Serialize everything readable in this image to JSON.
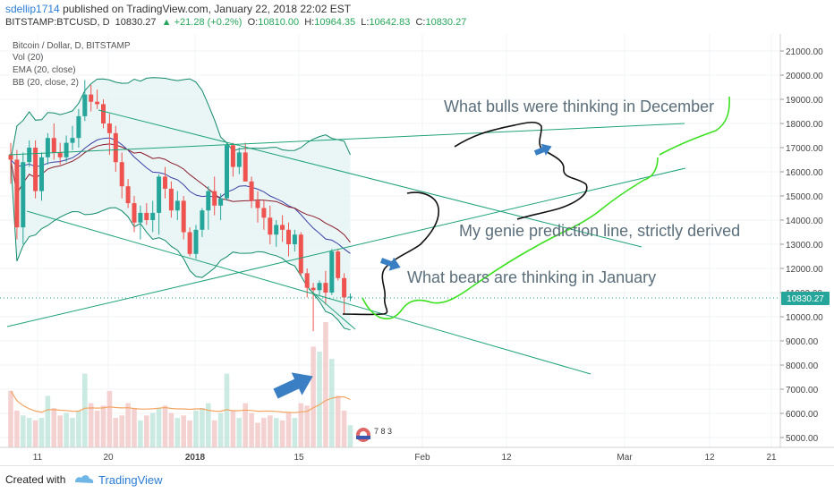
{
  "header": {
    "author": "sdellip1714",
    "published_text": "published on TradingView.com, January 22, 2018 22:02 EST",
    "symbol": "BITSTAMP:BTCUSD, D",
    "last": "10830.27",
    "change": "+21.28 (+0.2%)",
    "o_label": "O:",
    "o_value": "10810.00",
    "h_label": "H:",
    "h_value": "10964.35",
    "l_label": "L:",
    "l_value": "10642.83",
    "c_label": "C:",
    "c_value": "10830.27"
  },
  "legend": {
    "title": "Bitcoin / Dollar, D, BITSTAMP",
    "vol": "Vol (20)",
    "ema": "EMA (20, close)",
    "bb": "BB (20, close, 2)"
  },
  "annotations": {
    "bulls": "What bulls were thinking in December",
    "genie": "My genie prediction line, strictly derived",
    "bears": "What bears are thinking in January"
  },
  "footer": {
    "created_with": "Created with",
    "brand": "TradingView"
  },
  "colors": {
    "up": "#26a69a",
    "down": "#ef5350",
    "bb": "#0f8a6a",
    "ema": "#3b3fa8",
    "ema2": "#8b1a2b",
    "trend": "#1fa37a",
    "drawing_green": "#3be11f",
    "arrow_blue": "#3a7ec4",
    "price_label_bg": "#26a69a"
  },
  "chart_data": {
    "type": "candlestick",
    "title": "Bitcoin / Dollar, D, BITSTAMP",
    "ylim": [
      4500,
      22000
    ],
    "y_ticks": [
      "21000.00",
      "20000.00",
      "19000.00",
      "18000.00",
      "17000.00",
      "16000.00",
      "15000.00",
      "14000.00",
      "13000.00",
      "12000.00",
      "11000.00",
      "10000.00",
      "9000.00",
      "8000.00",
      "7000.00",
      "6000.00",
      "5000.00"
    ],
    "y_tick_values": [
      21000,
      20000,
      19000,
      18000,
      17000,
      16000,
      15000,
      14000,
      13000,
      12000,
      11000,
      10000,
      9000,
      8000,
      7000,
      6000,
      5000
    ],
    "x_ticks": [
      "11",
      "20",
      "2018",
      "15",
      "Feb",
      "12",
      "Mar",
      "12",
      "21"
    ],
    "last_price": 10830.27,
    "last_price_label": "10830.27",
    "watermark_digits": "7 8 3",
    "candles": [
      [
        16700,
        17200,
        15500,
        16500
      ],
      [
        16500,
        16900,
        13200,
        13700
      ],
      [
        13700,
        16800,
        13000,
        16400
      ],
      [
        16400,
        17300,
        16200,
        17000
      ],
      [
        17000,
        17300,
        14900,
        15200
      ],
      [
        15200,
        16800,
        14800,
        16600
      ],
      [
        16600,
        17600,
        16300,
        17400
      ],
      [
        17400,
        18000,
        16500,
        16800
      ],
      [
        16800,
        17200,
        16300,
        16600
      ],
      [
        16600,
        17500,
        16400,
        17200
      ],
      [
        17200,
        17900,
        16900,
        17400
      ],
      [
        17400,
        18600,
        17000,
        18300
      ],
      [
        18300,
        19800,
        18100,
        19200
      ],
      [
        19200,
        19600,
        18500,
        18900
      ],
      [
        18900,
        19400,
        18600,
        18800
      ],
      [
        18800,
        19000,
        17800,
        18000
      ],
      [
        18000,
        18400,
        16700,
        17600
      ],
      [
        17600,
        17900,
        16000,
        16400
      ],
      [
        16400,
        16800,
        14900,
        15400
      ],
      [
        15400,
        15700,
        14500,
        14700
      ],
      [
        14700,
        15000,
        13500,
        13900
      ],
      [
        13900,
        14600,
        13200,
        14300
      ],
      [
        14300,
        14700,
        13800,
        14000
      ],
      [
        14000,
        14800,
        13500,
        14300
      ],
      [
        14300,
        15900,
        13400,
        15800
      ],
      [
        15800,
        16200,
        14900,
        15300
      ],
      [
        15300,
        15600,
        14100,
        14400
      ],
      [
        14400,
        15200,
        14000,
        14800
      ],
      [
        14800,
        15000,
        13200,
        13500
      ],
      [
        13500,
        13700,
        12500,
        12600
      ],
      [
        12600,
        13800,
        12400,
        13600
      ],
      [
        13600,
        14500,
        13300,
        14400
      ],
      [
        14400,
        15400,
        13600,
        15200
      ],
      [
        15200,
        15800,
        14200,
        14600
      ],
      [
        14600,
        15100,
        14000,
        14900
      ],
      [
        14900,
        17200,
        14800,
        17100
      ],
      [
        17100,
        17200,
        15800,
        16200
      ],
      [
        16200,
        17000,
        15900,
        16800
      ],
      [
        16800,
        17200,
        15600,
        15600
      ],
      [
        15600,
        15800,
        14500,
        14800
      ],
      [
        14800,
        15200,
        13900,
        14500
      ],
      [
        14500,
        14800,
        13600,
        14100
      ],
      [
        14100,
        14600,
        13000,
        13400
      ],
      [
        13400,
        14000,
        12900,
        13800
      ],
      [
        13800,
        14200,
        13100,
        13600
      ],
      [
        13600,
        13900,
        12500,
        13000
      ],
      [
        13000,
        13600,
        12700,
        13400
      ],
      [
        13400,
        13500,
        11700,
        11800
      ],
      [
        11800,
        12000,
        10800,
        11200
      ],
      [
        11200,
        11400,
        9400,
        11100
      ],
      [
        11100,
        11500,
        10900,
        11400
      ],
      [
        11400,
        11900,
        10500,
        11000
      ],
      [
        11000,
        12800,
        10900,
        12700
      ],
      [
        12700,
        12800,
        11500,
        11600
      ],
      [
        11600,
        11800,
        10100,
        10800
      ],
      [
        10810,
        10964.35,
        10642.83,
        10830.27
      ]
    ],
    "volume": [
      230,
      150,
      130,
      120,
      110,
      120,
      210,
      160,
      130,
      140,
      120,
      150,
      300,
      180,
      150,
      170,
      230,
      120,
      130,
      180,
      160,
      110,
      130,
      140,
      160,
      170,
      140,
      120,
      130,
      110,
      150,
      160,
      180,
      110,
      140,
      300,
      150,
      120,
      180,
      140,
      100,
      120,
      130,
      120,
      110,
      140,
      120,
      180,
      170,
      410,
      390,
      510,
      360,
      210,
      150,
      90
    ]
  }
}
